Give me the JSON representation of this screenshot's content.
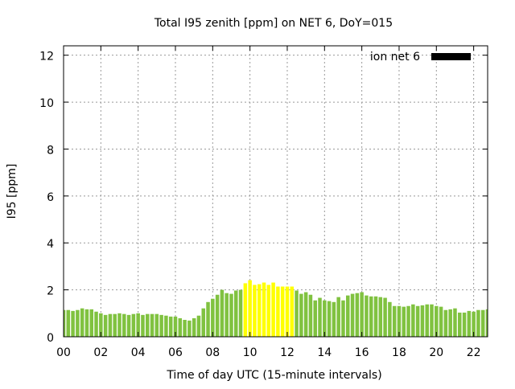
{
  "chart_data": {
    "type": "bar",
    "title": "Total I95 zenith [ppm] on NET 6, DoY=015",
    "xlabel": "Time of day UTC (15-minute intervals)",
    "ylabel": "I95 [ppm]",
    "xlim": [
      0,
      22.75
    ],
    "ylim": [
      0,
      12.4
    ],
    "grid": true,
    "legend": {
      "label": "ion net 6",
      "placement": "top-right",
      "color": "#000000"
    },
    "xticks": [
      0,
      2,
      4,
      6,
      8,
      10,
      12,
      14,
      16,
      18,
      20,
      22
    ],
    "xtick_labels": [
      "00",
      "02",
      "04",
      "06",
      "08",
      "10",
      "12",
      "14",
      "16",
      "18",
      "20",
      "22"
    ],
    "yticks": [
      0,
      2,
      4,
      6,
      8,
      10,
      12
    ],
    "ytick_labels": [
      "0",
      "2",
      "4",
      "6",
      "8",
      "10",
      "12"
    ],
    "colors": {
      "normal": "#80c240",
      "high": "#ffff00"
    },
    "high_threshold": 2.1,
    "interval_hours": 0.25,
    "values": [
      1.14,
      1.14,
      1.1,
      1.14,
      1.21,
      1.17,
      1.17,
      1.07,
      1.0,
      0.93,
      0.97,
      0.97,
      1.0,
      0.97,
      0.93,
      0.97,
      1.0,
      0.93,
      0.97,
      0.97,
      0.97,
      0.93,
      0.9,
      0.86,
      0.86,
      0.79,
      0.72,
      0.69,
      0.79,
      0.9,
      1.21,
      1.48,
      1.62,
      1.79,
      2.0,
      1.86,
      1.83,
      1.97,
      2.0,
      2.28,
      2.41,
      2.21,
      2.24,
      2.31,
      2.21,
      2.31,
      2.14,
      2.14,
      2.14,
      2.14,
      1.97,
      1.83,
      1.9,
      1.79,
      1.55,
      1.66,
      1.55,
      1.52,
      1.48,
      1.69,
      1.55,
      1.76,
      1.83,
      1.86,
      1.9,
      1.76,
      1.72,
      1.72,
      1.69,
      1.66,
      1.48,
      1.31,
      1.31,
      1.28,
      1.31,
      1.38,
      1.31,
      1.34,
      1.38,
      1.38,
      1.31,
      1.28,
      1.14,
      1.17,
      1.21,
      1.03,
      1.03,
      1.1,
      1.07,
      1.14,
      1.14,
      1.17
    ]
  }
}
